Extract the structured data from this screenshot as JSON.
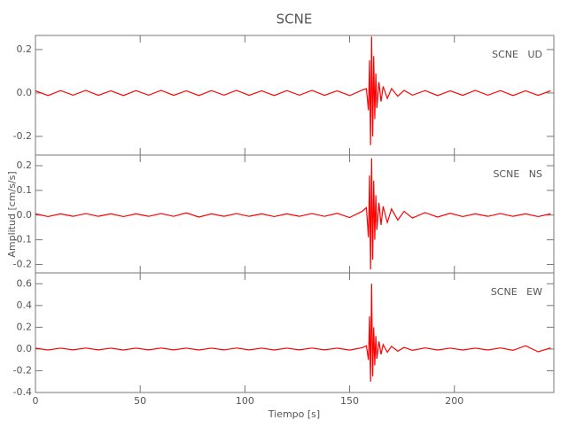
{
  "chart_data": {
    "type": "line",
    "title": "SCNE",
    "xlabel": "Tiempo [s]",
    "ylabel": "Amplitud [cm/s/s]",
    "xlim": [
      0,
      247.5
    ],
    "xticks": [
      0,
      50,
      100,
      150,
      200
    ],
    "x": [
      0,
      6,
      12,
      18,
      24,
      30,
      36,
      42,
      48,
      54,
      60,
      66,
      72,
      78,
      84,
      90,
      96,
      102,
      108,
      114,
      120,
      126,
      132,
      138,
      144,
      150,
      156,
      158,
      159,
      159.5,
      160,
      160.5,
      161,
      161.5,
      162,
      162.5,
      163,
      164,
      165,
      166,
      168,
      170,
      173,
      176,
      180,
      186,
      192,
      198,
      204,
      210,
      216,
      222,
      228,
      234,
      240,
      246
    ],
    "panels": [
      {
        "label": "SCNE   UD",
        "color": "#ff0000",
        "ylim": [
          -0.286,
          0.265
        ],
        "yticks": [
          -0.2,
          {
            "value": 0,
            "label": "0.0"
          },
          0.2
        ],
        "values": [
          0.01,
          -0.012,
          0.011,
          -0.01,
          0.012,
          -0.011,
          0.01,
          -0.012,
          0.011,
          -0.01,
          0.012,
          -0.011,
          0.01,
          -0.012,
          0.011,
          -0.01,
          0.012,
          -0.011,
          0.01,
          -0.012,
          0.011,
          -0.01,
          0.012,
          -0.011,
          0.01,
          -0.012,
          0.013,
          0.02,
          -0.08,
          0.15,
          -0.24,
          0.26,
          -0.2,
          0.17,
          -0.12,
          0.09,
          -0.07,
          0.05,
          -0.04,
          0.03,
          -0.025,
          0.02,
          -0.015,
          0.012,
          -0.01,
          0.011,
          -0.012,
          0.01,
          -0.011,
          0.012,
          -0.01,
          0.011,
          -0.012,
          0.01,
          -0.011,
          0.01
        ]
      },
      {
        "label": "SCNE   NS",
        "color": "#ff0000",
        "ylim": [
          -0.234,
          0.243
        ],
        "yticks": [
          -0.2,
          -0.1,
          {
            "value": 0,
            "label": "0.0"
          },
          0.1,
          0.2
        ],
        "values": [
          0.005,
          -0.006,
          0.005,
          -0.005,
          0.006,
          -0.005,
          0.005,
          -0.006,
          0.005,
          -0.005,
          0.006,
          -0.005,
          0.009,
          -0.008,
          0.005,
          -0.005,
          0.006,
          -0.005,
          0.005,
          -0.006,
          0.005,
          -0.005,
          0.006,
          -0.005,
          0.007,
          -0.01,
          0.015,
          0.03,
          -0.09,
          0.16,
          -0.22,
          0.23,
          -0.18,
          0.14,
          -0.1,
          0.08,
          -0.06,
          0.05,
          -0.04,
          0.035,
          -0.03,
          0.025,
          -0.02,
          0.015,
          -0.012,
          0.01,
          -0.008,
          0.007,
          -0.006,
          0.005,
          -0.005,
          0.006,
          -0.005,
          0.005,
          -0.006,
          0.005
        ]
      },
      {
        "label": "SCNE   EW",
        "color": "#ff0000",
        "ylim": [
          -0.4,
          0.7
        ],
        "yticks": [
          -0.4,
          -0.2,
          {
            "value": 0,
            "label": "0.0"
          },
          0.2,
          0.4,
          0.6
        ],
        "values": [
          0.008,
          -0.009,
          0.008,
          -0.008,
          0.009,
          -0.008,
          0.008,
          -0.009,
          0.008,
          -0.008,
          0.009,
          -0.008,
          0.008,
          -0.009,
          0.008,
          -0.008,
          0.009,
          -0.008,
          0.008,
          -0.009,
          0.008,
          -0.008,
          0.009,
          -0.008,
          0.008,
          -0.01,
          0.012,
          0.03,
          -0.1,
          0.3,
          -0.3,
          0.6,
          -0.25,
          0.2,
          -0.15,
          0.12,
          -0.09,
          0.07,
          -0.05,
          0.04,
          -0.03,
          0.025,
          -0.02,
          0.015,
          -0.012,
          0.01,
          -0.009,
          0.008,
          -0.009,
          0.008,
          -0.009,
          0.01,
          -0.012,
          0.03,
          -0.025,
          0.01
        ]
      }
    ]
  }
}
